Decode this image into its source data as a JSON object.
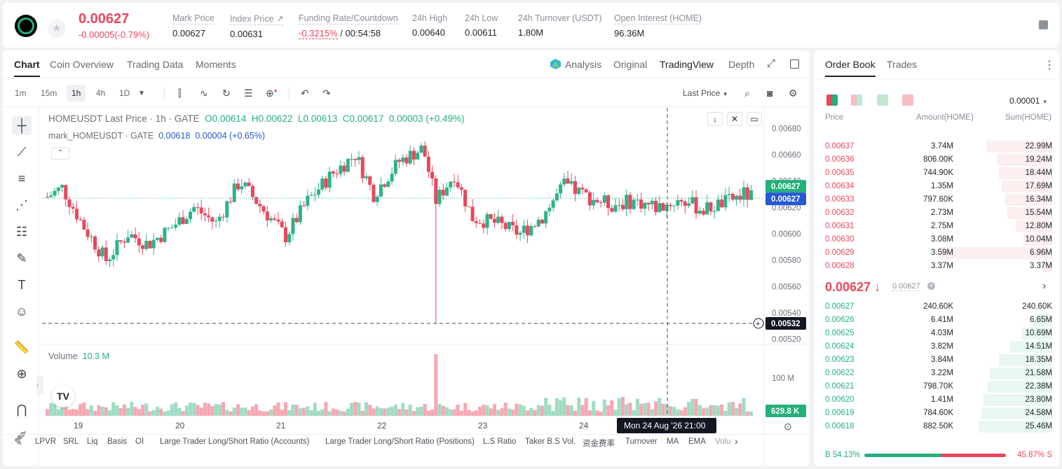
{
  "header": {
    "price": "0.00627",
    "change": "-0.00005(-0.79%)",
    "stats": [
      {
        "label": "Mark Price",
        "value": "0.00627"
      },
      {
        "label": "Index Price ↗",
        "value": "0.00631"
      },
      {
        "label": "Funding Rate/Countdown",
        "rate": "-0.3215%",
        "value": "/ 00:54:58"
      },
      {
        "label": "24h High",
        "value": "0.00640"
      },
      {
        "label": "24h Low",
        "value": "0.00611"
      },
      {
        "label": "24h Turnover (USDT)",
        "value": "1.80M"
      },
      {
        "label": "Open Interest (HOME)",
        "value": "96.36M"
      }
    ]
  },
  "chart_tabs": [
    "Chart",
    "Coin Overview",
    "Trading Data",
    "Moments"
  ],
  "view_tabs": [
    "Analysis",
    "Original",
    "TradingView",
    "Depth"
  ],
  "intervals": [
    "1m",
    "15m",
    "1h",
    "4h",
    "1D"
  ],
  "price_type": "Last Price",
  "legend": {
    "symbol": "HOMEUSDT Last Price · 1h · GATE",
    "o": "O0.00614",
    "h": "H0.00622",
    "l": "L0.00613",
    "c": "C0.00617",
    "chg": "0.00003 (+0.49%)",
    "mark": "mark_HOMEUSDT · GATE",
    "mark_val": "0.00618",
    "mark_chg": "0.00004 (+0.65%)"
  },
  "volume": {
    "label": "Volume",
    "value": "10.3 M",
    "axis": "100 M",
    "last": "629.8 K"
  },
  "price_axis": [
    "0.00680",
    "0.00660",
    "0.00640",
    "0.00620",
    "0.00600",
    "0.00580",
    "0.00560",
    "0.00540",
    "0.00520"
  ],
  "price_tags": {
    "mark": "0.00627",
    "last": "0.00627",
    "cross": "0.00532"
  },
  "dates": [
    "19",
    "20",
    "21",
    "22",
    "23",
    "24"
  ],
  "cursor_time": "Mon 24 Aug '26   21:00",
  "indicators": [
    "LPVR",
    "SRL",
    "Liq",
    "Basis",
    "OI",
    "Large Trader Long/Short Ratio (Accounts)",
    "Large Trader Long/Short Ratio (Positions)",
    "L.S Ratio",
    "Taker B.S Vol.",
    "资金费率",
    "Turnover",
    "MA",
    "EMA",
    "Volu"
  ],
  "orderbook": {
    "tabs": [
      "Order Book",
      "Trades"
    ],
    "precision": "0.00001",
    "cols": [
      "Price",
      "Amount(HOME)",
      "Sum(HOME)"
    ],
    "asks": [
      [
        "0.00637",
        "3.74M",
        "22.99M",
        0.9
      ],
      [
        "0.00636",
        "806.00K",
        "19.24M",
        0.75
      ],
      [
        "0.00635",
        "744.90K",
        "18.44M",
        0.72
      ],
      [
        "0.00634",
        "1.35M",
        "17.69M",
        0.69
      ],
      [
        "0.00633",
        "797.60K",
        "16.34M",
        0.64
      ],
      [
        "0.00632",
        "2.73M",
        "15.54M",
        0.61
      ],
      [
        "0.00631",
        "2.75M",
        "12.80M",
        0.5
      ],
      [
        "0.00630",
        "3.08M",
        "10.04M",
        0.39
      ],
      [
        "0.00629",
        "3.59M",
        "6.96M",
        0.27
      ],
      [
        "0.00628",
        "3.37M",
        "3.37M",
        0.13
      ]
    ],
    "mid": "0.00627 ↓",
    "mark": "0.00627",
    "bids": [
      [
        "0.00627",
        "240.60K",
        "240.60K",
        0.0
      ],
      [
        "0.00626",
        "6.41M",
        "6.65M",
        0.26
      ],
      [
        "0.00625",
        "4.03M",
        "10.69M",
        0.42
      ],
      [
        "0.00624",
        "3.82M",
        "14.51M",
        0.57
      ],
      [
        "0.00623",
        "3.84M",
        "18.35M",
        0.72
      ],
      [
        "0.00622",
        "3.22M",
        "21.58M",
        0.85
      ],
      [
        "0.00621",
        "798.70K",
        "22.38M",
        0.88
      ],
      [
        "0.00620",
        "1.41M",
        "23.80M",
        0.93
      ],
      [
        "0.00619",
        "784.60K",
        "24.58M",
        0.96
      ],
      [
        "0.00618",
        "882.50K",
        "25.46M",
        1.0
      ]
    ],
    "buy": "B 54.13%",
    "sell": "45.87% S"
  }
}
